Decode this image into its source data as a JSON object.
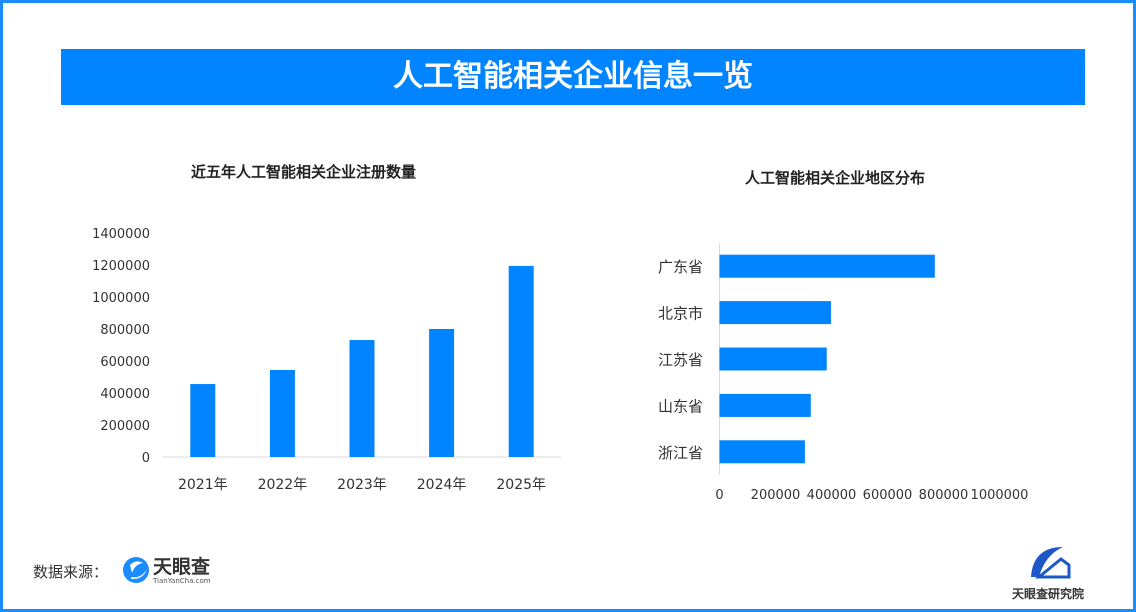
{
  "banner_title": "人工智能相关企业信息一览",
  "chart_data": [
    {
      "type": "bar",
      "title": "近五年人工智能相关企业注册数量",
      "categories": [
        "2021年",
        "2022年",
        "2023年",
        "2024年",
        "2025年"
      ],
      "values": [
        456000,
        544000,
        731000,
        800000,
        1194000
      ],
      "ylim": [
        0,
        1400000
      ],
      "yticks": [
        0,
        200000,
        400000,
        600000,
        800000,
        1000000,
        1200000,
        1400000
      ],
      "orientation": "vertical",
      "grid": false,
      "color": "#0084ff"
    },
    {
      "type": "bar",
      "title": "人工智能相关企业地区分布",
      "categories": [
        "广东省",
        "北京市",
        "江苏省",
        "山东省",
        "浙江省"
      ],
      "values": [
        769000,
        398000,
        383000,
        326000,
        305000
      ],
      "xlim": [
        0,
        1000000
      ],
      "xticks": [
        0,
        200000,
        400000,
        600000,
        800000,
        1000000
      ],
      "orientation": "horizontal",
      "grid": false,
      "color": "#0084ff"
    }
  ],
  "footer": {
    "source_label": "数据来源：",
    "source_logo_text": "天眼查",
    "source_logo_sub": "TianYanCha.com",
    "institute_logo_text": "天眼查研究院"
  }
}
